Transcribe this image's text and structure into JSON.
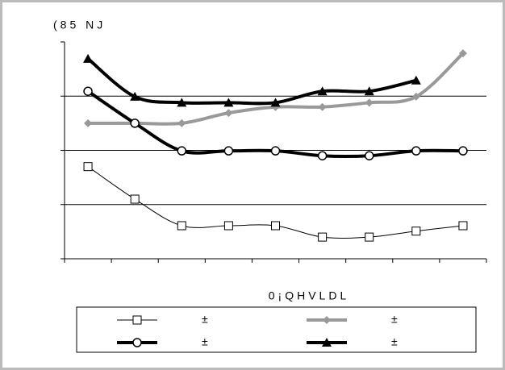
{
  "chart_data": {
    "type": "line",
    "title": "(85 NJ",
    "x_label": "0¡QHVLDL",
    "categories": [
      null,
      null,
      null,
      null,
      null,
      null,
      null,
      null,
      null
    ],
    "ylim": [
      0,
      4
    ],
    "yticks": [
      0,
      1,
      2,
      3,
      4
    ],
    "grid": true,
    "smooth": true,
    "legend": "bottom",
    "series": [
      {
        "name": "±",
        "color": "#000000",
        "width": 1,
        "marker": "square",
        "values": [
          1.7,
          1.1,
          0.61,
          0.61,
          0.61,
          0.4,
          0.4,
          0.51,
          0.61
        ]
      },
      {
        "name": "±",
        "color": "#999999",
        "width": 4,
        "marker": "diamond",
        "values": [
          2.5,
          2.5,
          2.5,
          2.69,
          2.8,
          2.8,
          2.88,
          2.99,
          3.79
        ]
      },
      {
        "name": "±",
        "color": "#000000",
        "width": 4,
        "marker": "circle",
        "values": [
          3.09,
          2.5,
          1.99,
          1.99,
          1.99,
          1.9,
          1.9,
          1.99,
          1.99
        ]
      },
      {
        "name": "±",
        "color": "#000000",
        "width": 4,
        "marker": "triangle",
        "values": [
          3.69,
          2.99,
          2.88,
          2.88,
          2.88,
          3.09,
          3.09,
          3.29,
          null
        ]
      }
    ]
  }
}
